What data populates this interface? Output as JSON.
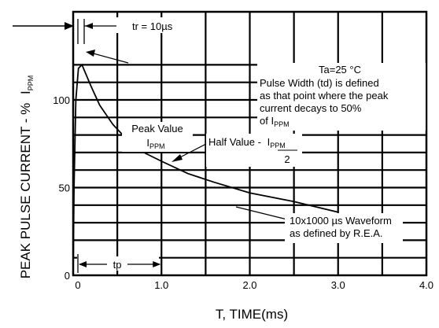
{
  "chart_data": {
    "type": "line",
    "title": "",
    "xlabel": "T, TIME(ms)",
    "ylabel": "PEAK PULSE CURRENT - %",
    "ylabel_sub": "I",
    "ylabel_sub_suffix": "PPM",
    "xlim": [
      0,
      4.0
    ],
    "ylim": [
      0,
      130
    ],
    "x_ticks": [
      "0",
      "1.0",
      "2.0",
      "3.0",
      "4.0"
    ],
    "y_ticks": [
      "0",
      "50",
      "100"
    ],
    "grid": true,
    "series": [
      {
        "x": [
          0.0,
          0.01,
          0.03,
          0.06,
          0.1,
          0.2,
          0.3,
          0.45,
          0.6,
          0.8,
          1.0,
          1.3,
          1.6,
          2.0,
          2.5,
          3.0
        ],
        "y": [
          0,
          50,
          100,
          118,
          120,
          108,
          97,
          86,
          78,
          70,
          65,
          58,
          53,
          47,
          42,
          36
        ]
      }
    ],
    "annotations": {
      "tr_label": "tr = 10µs",
      "tp_label": "tp",
      "ta": "Ta=25 °C",
      "pw_lines": [
        "Pulse Width (td) is defined",
        "as that point where the peak",
        "current decays to 50%"
      ],
      "pw_last": "of I",
      "pw_last_sub": "PPM",
      "peak_label": "Peak Value",
      "peak_sub_main": "I",
      "peak_sub": "PPM",
      "half_label": "Half Value - ",
      "half_num_main": "I",
      "half_num_sub": "PPM",
      "half_den": "2",
      "waveform_1": "10x1000 µs Waveform",
      "waveform_2": "as defined by R.E.A."
    }
  }
}
